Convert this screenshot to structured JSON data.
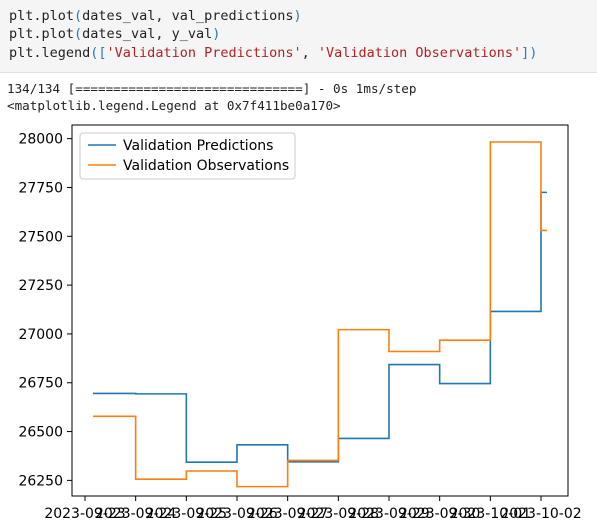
{
  "code": {
    "lines": [
      [
        {
          "t": "plt.plot",
          "c": "plain"
        },
        {
          "t": "(",
          "c": "br"
        },
        {
          "t": "dates_val, val_predictions",
          "c": "plain"
        },
        {
          "t": ")",
          "c": "br"
        }
      ],
      [
        {
          "t": "plt.plot",
          "c": "plain"
        },
        {
          "t": "(",
          "c": "br"
        },
        {
          "t": "dates_val, y_val",
          "c": "plain"
        },
        {
          "t": ")",
          "c": "br"
        }
      ],
      [
        {
          "t": "plt.legend",
          "c": "plain"
        },
        {
          "t": "([",
          "c": "br"
        },
        {
          "t": "'Validation Predictions'",
          "c": "str"
        },
        {
          "t": ", ",
          "c": "plain"
        },
        {
          "t": "'Validation Observations'",
          "c": "str"
        },
        {
          "t": "])",
          "c": "br"
        }
      ]
    ]
  },
  "output": {
    "progress_line": "134/134 [==============================] - 0s 1ms/step",
    "repr_line": "<matplotlib.legend.Legend at 0x7f411be0a170>"
  },
  "chart_data": {
    "type": "line",
    "drawstyle": "steps",
    "x": [
      "2023-09-23",
      "2023-09-24",
      "2023-09-25",
      "2023-09-26",
      "2023-09-27",
      "2023-09-28",
      "2023-09-29",
      "2023-09-30",
      "2023-10-01",
      "2023-10-02"
    ],
    "xticklabels": [
      "2023-09-23",
      "2023-09-24",
      "2023-09-25",
      "2023-09-26",
      "2023-09-27",
      "2023-09-28",
      "2023-09-29",
      "2023-09-30",
      "2023-10-01",
      "2023-10-02"
    ],
    "ylim": [
      26170,
      28070
    ],
    "yticks": [
      26250,
      26500,
      26750,
      27000,
      27250,
      27500,
      27750,
      28000
    ],
    "legend_loc": "upper-left",
    "grid": false,
    "series": [
      {
        "name": "Validation Predictions",
        "color": "#1f77b4",
        "points": [
          [
            "2023-09-23",
            26695
          ],
          [
            "2023-09-24",
            26693
          ],
          [
            "2023-09-25",
            26343
          ],
          [
            "2023-09-26",
            26432
          ],
          [
            "2023-09-27",
            26345
          ],
          [
            "2023-09-28",
            26465
          ],
          [
            "2023-09-29",
            26843
          ],
          [
            "2023-09-30",
            26746
          ],
          [
            "2023-10-01",
            27115
          ],
          [
            "2023-10-02",
            27725
          ]
        ]
      },
      {
        "name": "Validation Observations",
        "color": "#ff7f0e",
        "points": [
          [
            "2023-09-23",
            26578
          ],
          [
            "2023-09-24",
            26256
          ],
          [
            "2023-09-25",
            26298
          ],
          [
            "2023-09-26",
            26218
          ],
          [
            "2023-09-27",
            26352
          ],
          [
            "2023-09-28",
            27022
          ],
          [
            "2023-09-29",
            26910
          ],
          [
            "2023-09-30",
            26968
          ],
          [
            "2023-10-01",
            27983
          ],
          [
            "2023-10-02",
            27530
          ]
        ]
      }
    ]
  }
}
